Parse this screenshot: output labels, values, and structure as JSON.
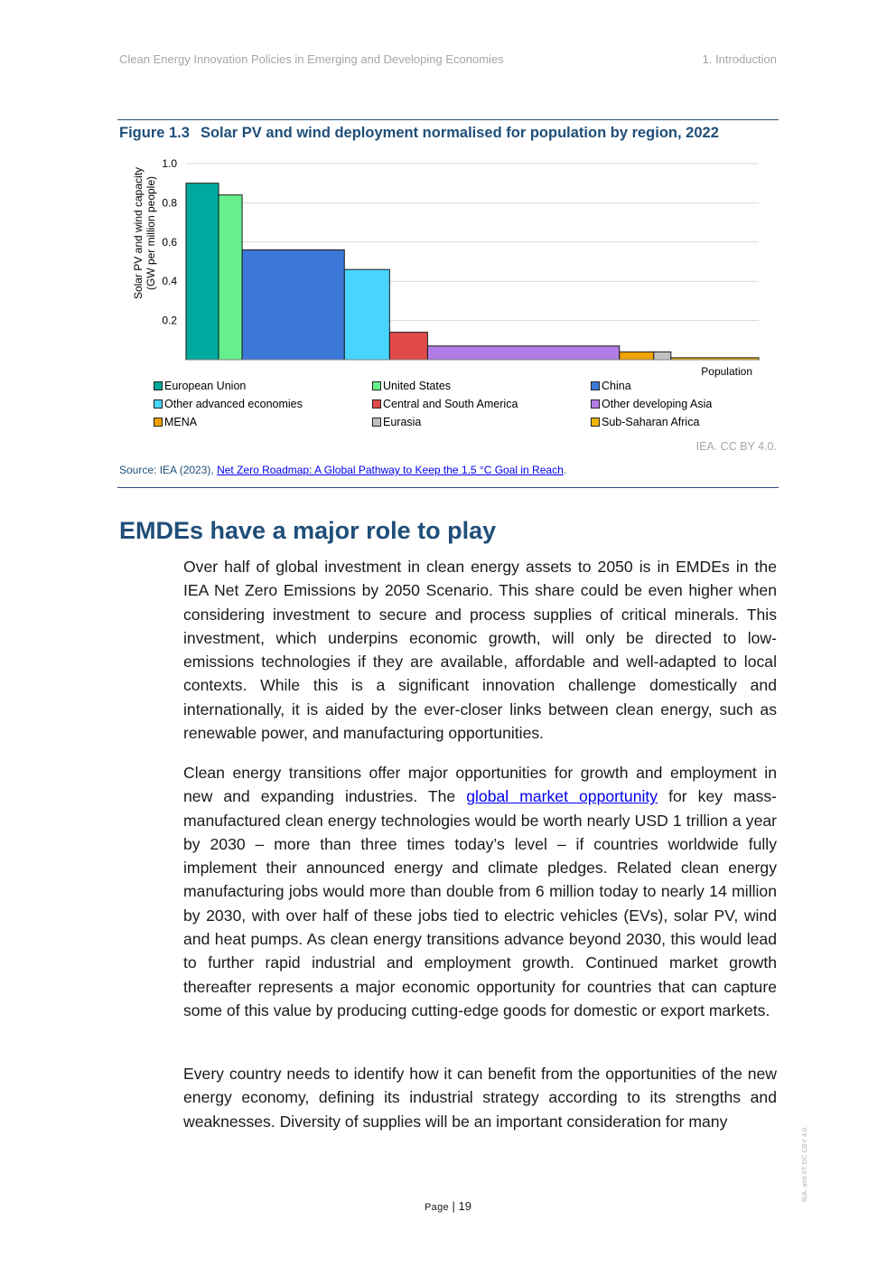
{
  "header": {
    "left": "Clean Energy Innovation Policies in Emerging and Developing Economies",
    "right": "1. Introduction"
  },
  "figure": {
    "number": "Figure 1.3",
    "title": "Solar PV and wind deployment normalised for population by region, 2022",
    "credit": "IEA. CC BY 4.0.",
    "source_prefix": "Source: IEA (2023), ",
    "source_link": "Net Zero Roadmap: A Global Pathway to Keep the 1.5 °C Goal in Reach",
    "source_suffix": "."
  },
  "chart_data": {
    "type": "bar",
    "subtype": "variable-width (width proportional to population)",
    "ylabel_line1": "Solar PV and wind capacity",
    "ylabel_line2": "(GW per million people)",
    "xlabel": "Population",
    "ylim": [
      0,
      1.0
    ],
    "yticks": [
      0.2,
      0.4,
      0.6,
      0.8,
      1.0
    ],
    "ytick_labels": [
      "0.2",
      "0.4",
      "0.6",
      "0.8",
      "1.0"
    ],
    "grid": true,
    "legend_position": "bottom",
    "series": [
      {
        "name": "European Union",
        "value": 0.9,
        "width": 36,
        "color": "#00a99d"
      },
      {
        "name": "United States",
        "value": 0.84,
        "width": 26,
        "color": "#66f08e"
      },
      {
        "name": "China",
        "value": 0.56,
        "width": 113,
        "color": "#3c78d8"
      },
      {
        "name": "Other advanced economies",
        "value": 0.46,
        "width": 50,
        "color": "#47d4ff"
      },
      {
        "name": "Central and South America",
        "value": 0.14,
        "width": 42,
        "color": "#e04a4a"
      },
      {
        "name": "Other developing Asia",
        "value": 0.07,
        "width": 212,
        "color": "#b27ce6"
      },
      {
        "name": "MENA",
        "value": 0.04,
        "width": 38,
        "color": "#f0a202"
      },
      {
        "name": "Eurasia",
        "value": 0.04,
        "width": 19,
        "color": "#c0c0c0"
      },
      {
        "name": "Sub-Saharan Africa",
        "value": 0.01,
        "width": 97,
        "color": "#f0b400"
      }
    ]
  },
  "section": {
    "title": "EMDEs have a major role to play"
  },
  "paragraphs": {
    "p1": "Over half of global investment in clean energy assets to 2050 is in EMDEs in the IEA Net Zero Emissions by 2050 Scenario. This share could be even higher when considering investment to secure and process supplies of critical minerals. This investment, which underpins economic growth, will only be directed to low-emissions technologies if they are available, affordable and well-adapted to local contexts. While this is a significant innovation challenge domestically and internationally, it is aided by the ever-closer links between clean energy, such as renewable power, and manufacturing opportunities.",
    "p2_before": "Clean energy transitions offer major opportunities for growth and employment in new and expanding industries. The ",
    "p2_link": "global market opportunity",
    "p2_after": " for key mass-manufactured clean energy technologies would be worth nearly USD 1 trillion a year by 2030 – more than three times today’s level – if countries worldwide fully implement their announced energy and climate pledges. Related clean energy manufacturing jobs would more than double from 6 million today to nearly 14 million by 2030, with over half of these jobs tied to electric vehicles (EVs), solar PV, wind and heat pumps. As clean energy transitions advance beyond 2030, this would lead to further rapid industrial and employment growth. Continued market growth thereafter represents a major economic opportunity for countries that can capture some of this value by producing cutting-edge goods for domestic or export markets.",
    "p3": "Every country needs to identify how it can benefit from the opportunities of the new energy economy, defining its industrial strategy according to its strengths and weaknesses. Diversity of supplies will be an important consideration for many"
  },
  "footer": {
    "page_label": "Page",
    "separator": " | ",
    "page_number": "19",
    "side_license": "IEA. and IIT DC CBY 4.0."
  }
}
